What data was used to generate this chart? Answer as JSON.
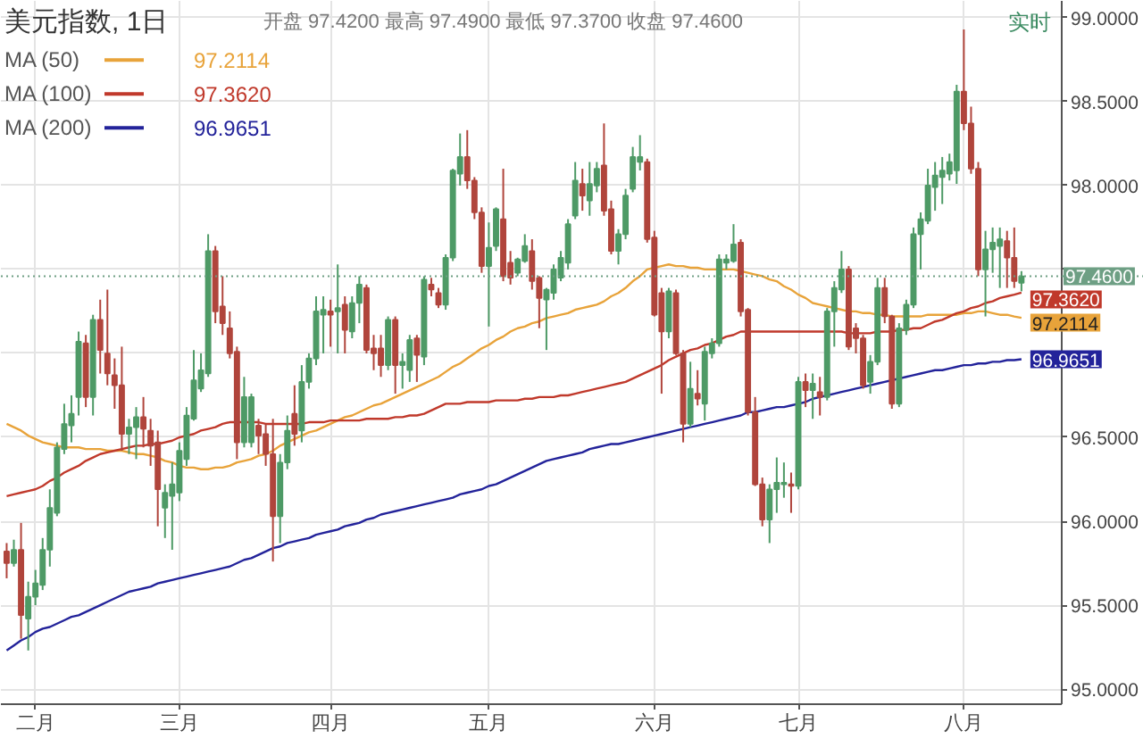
{
  "chart_data": {
    "type": "candlestick",
    "title": "美元指数, 1日",
    "subtitle": "开盘 97.4200 最高 97.4900 最低 97.3700 收盘 97.4600",
    "annotations": [
      "实时"
    ],
    "categories": [
      null,
      null,
      null,
      null,
      "二月",
      null,
      null,
      null,
      null,
      null,
      null,
      null,
      null,
      null,
      null,
      null,
      null,
      null,
      null,
      null,
      null,
      null,
      null,
      null,
      "三月",
      null,
      null,
      null,
      null,
      null,
      null,
      null,
      null,
      null,
      null,
      null,
      null,
      null,
      null,
      null,
      null,
      null,
      null,
      null,
      null,
      "四月",
      null,
      null,
      null,
      null,
      null,
      null,
      null,
      null,
      null,
      null,
      null,
      null,
      null,
      null,
      null,
      null,
      null,
      null,
      null,
      null,
      null,
      "五月",
      null,
      null,
      null,
      null,
      null,
      null,
      null,
      null,
      null,
      null,
      null,
      null,
      null,
      null,
      null,
      null,
      null,
      null,
      null,
      null,
      null,
      null,
      "六月",
      null,
      null,
      null,
      null,
      null,
      null,
      null,
      null,
      null,
      null,
      null,
      null,
      null,
      null,
      null,
      null,
      null,
      null,
      null,
      "七月",
      null,
      null,
      null,
      null,
      null,
      null,
      null,
      null,
      null,
      null,
      null,
      null,
      null,
      null,
      null,
      null,
      null,
      null,
      null,
      null,
      null,
      null,
      "八月",
      null,
      null,
      null,
      null,
      null,
      null,
      null,
      null
    ],
    "ohlc": [
      [
        95.82,
        95.87,
        95.66,
        95.75
      ],
      [
        95.75,
        95.89,
        95.73,
        95.83
      ],
      [
        95.83,
        95.99,
        95.3,
        95.44
      ],
      [
        95.42,
        95.64,
        95.23,
        95.55
      ],
      [
        95.55,
        95.71,
        95.5,
        95.63
      ],
      [
        95.62,
        95.9,
        95.59,
        95.83
      ],
      [
        95.83,
        96.19,
        95.73,
        96.08
      ],
      [
        96.05,
        96.47,
        96.03,
        96.44
      ],
      [
        96.43,
        96.7,
        96.4,
        96.58
      ],
      [
        96.57,
        96.75,
        96.47,
        96.64
      ],
      [
        96.74,
        97.13,
        96.63,
        97.07
      ],
      [
        97.06,
        97.11,
        96.68,
        96.74
      ],
      [
        96.74,
        97.23,
        96.63,
        97.2
      ],
      [
        97.2,
        97.32,
        96.88,
        97.02
      ],
      [
        97.0,
        97.38,
        96.81,
        96.88
      ],
      [
        96.87,
        96.97,
        96.67,
        96.81
      ],
      [
        96.81,
        97.04,
        96.42,
        96.52
      ],
      [
        96.52,
        96.61,
        96.4,
        96.56
      ],
      [
        96.56,
        96.68,
        96.37,
        96.62
      ],
      [
        96.62,
        96.74,
        96.44,
        96.55
      ],
      [
        96.54,
        96.61,
        96.33,
        96.45
      ],
      [
        96.47,
        96.54,
        95.97,
        96.19
      ],
      [
        96.08,
        96.22,
        95.9,
        96.17
      ],
      [
        96.15,
        96.35,
        95.83,
        96.22
      ],
      [
        96.17,
        96.47,
        96.12,
        96.42
      ],
      [
        96.37,
        96.68,
        96.33,
        96.63
      ],
      [
        96.61,
        97.02,
        96.6,
        96.84
      ],
      [
        96.79,
        97.0,
        96.77,
        96.9
      ],
      [
        96.88,
        97.71,
        96.86,
        97.61
      ],
      [
        97.61,
        97.64,
        97.18,
        97.25
      ],
      [
        97.28,
        97.46,
        97.11,
        97.18
      ],
      [
        97.15,
        97.25,
        96.97,
        97.0
      ],
      [
        97.01,
        97.04,
        96.37,
        96.47
      ],
      [
        96.47,
        96.86,
        96.44,
        96.74
      ],
      [
        96.47,
        96.76,
        96.44,
        96.74
      ],
      [
        96.57,
        96.61,
        96.4,
        96.51
      ],
      [
        96.52,
        96.58,
        96.33,
        96.4
      ],
      [
        96.4,
        96.61,
        95.76,
        96.03
      ],
      [
        96.03,
        96.4,
        95.87,
        96.35
      ],
      [
        96.35,
        96.63,
        96.31,
        96.54
      ],
      [
        96.64,
        96.81,
        96.45,
        96.52
      ],
      [
        96.54,
        96.93,
        96.47,
        96.83
      ],
      [
        96.83,
        97.0,
        96.79,
        96.97
      ],
      [
        96.97,
        97.34,
        96.93,
        97.25
      ],
      [
        97.23,
        97.34,
        97.0,
        97.26
      ],
      [
        97.25,
        97.32,
        97.04,
        97.23
      ],
      [
        97.25,
        97.53,
        97.0,
        97.27
      ],
      [
        97.29,
        97.34,
        97.0,
        97.14
      ],
      [
        97.13,
        97.34,
        97.09,
        97.3
      ],
      [
        97.3,
        97.46,
        97.18,
        97.41
      ],
      [
        97.39,
        97.41,
        97.0,
        97.02
      ],
      [
        97.03,
        97.11,
        96.9,
        97.0
      ],
      [
        97.03,
        97.11,
        96.86,
        96.93
      ],
      [
        96.93,
        97.22,
        96.9,
        97.2
      ],
      [
        97.2,
        97.22,
        96.76,
        96.93
      ],
      [
        96.93,
        97.0,
        96.79,
        96.95
      ],
      [
        96.9,
        97.11,
        96.83,
        97.08
      ],
      [
        97.09,
        97.11,
        96.83,
        96.99
      ],
      [
        96.98,
        97.46,
        96.93,
        97.44
      ],
      [
        97.41,
        97.45,
        97.34,
        97.38
      ],
      [
        97.36,
        97.39,
        97.27,
        97.29
      ],
      [
        97.29,
        97.59,
        97.26,
        97.57
      ],
      [
        97.57,
        98.1,
        97.55,
        98.09
      ],
      [
        98.07,
        98.31,
        98.0,
        98.17
      ],
      [
        98.17,
        98.33,
        97.98,
        98.03
      ],
      [
        98.03,
        98.05,
        97.8,
        97.84
      ],
      [
        97.84,
        97.87,
        97.48,
        97.52
      ],
      [
        97.52,
        97.78,
        97.16,
        97.63
      ],
      [
        97.64,
        97.87,
        97.61,
        97.86
      ],
      [
        97.8,
        98.1,
        97.43,
        97.46
      ],
      [
        97.54,
        97.61,
        97.41,
        97.45
      ],
      [
        97.48,
        97.57,
        97.46,
        97.56
      ],
      [
        97.55,
        97.71,
        97.54,
        97.64
      ],
      [
        97.61,
        97.68,
        97.38,
        97.43
      ],
      [
        97.45,
        97.46,
        97.15,
        97.33
      ],
      [
        97.32,
        97.39,
        97.02,
        97.38
      ],
      [
        97.36,
        97.53,
        97.32,
        97.5
      ],
      [
        97.45,
        97.61,
        97.43,
        97.57
      ],
      [
        97.54,
        97.8,
        97.5,
        97.77
      ],
      [
        97.82,
        98.14,
        97.8,
        98.03
      ],
      [
        98.01,
        98.1,
        97.85,
        97.94
      ],
      [
        97.91,
        98.14,
        97.82,
        98.01
      ],
      [
        98.0,
        98.14,
        97.96,
        98.1
      ],
      [
        98.12,
        98.37,
        97.82,
        97.85
      ],
      [
        97.86,
        97.91,
        97.59,
        97.61
      ],
      [
        97.61,
        97.74,
        97.53,
        97.71
      ],
      [
        97.71,
        97.98,
        97.68,
        97.94
      ],
      [
        97.98,
        98.23,
        97.96,
        98.17
      ],
      [
        98.14,
        98.3,
        98.09,
        98.17
      ],
      [
        98.14,
        98.16,
        97.66,
        97.68
      ],
      [
        97.69,
        97.73,
        97.22,
        97.23
      ],
      [
        97.36,
        97.39,
        96.76,
        97.13
      ],
      [
        97.13,
        97.39,
        97.09,
        97.37
      ],
      [
        97.36,
        97.38,
        96.99,
        97.0
      ],
      [
        97.0,
        97.02,
        96.47,
        96.58
      ],
      [
        96.58,
        96.95,
        96.56,
        96.79
      ],
      [
        96.76,
        96.9,
        96.69,
        96.73
      ],
      [
        96.7,
        97.04,
        96.6,
        97.01
      ],
      [
        97.0,
        97.09,
        96.97,
        97.06
      ],
      [
        97.06,
        97.59,
        97.04,
        97.56
      ],
      [
        97.54,
        97.59,
        97.5,
        97.56
      ],
      [
        97.55,
        97.77,
        97.54,
        97.65
      ],
      [
        97.66,
        97.68,
        97.22,
        97.25
      ],
      [
        97.26,
        97.27,
        96.63,
        96.65
      ],
      [
        96.65,
        96.74,
        96.21,
        96.22
      ],
      [
        96.22,
        96.26,
        95.97,
        96.01
      ],
      [
        96.01,
        96.22,
        95.87,
        96.19
      ],
      [
        96.19,
        96.38,
        96.05,
        96.23
      ],
      [
        96.22,
        96.35,
        96.14,
        96.23
      ],
      [
        96.22,
        96.29,
        96.05,
        96.21
      ],
      [
        96.21,
        96.86,
        96.19,
        96.83
      ],
      [
        96.83,
        96.88,
        96.68,
        96.78
      ],
      [
        96.78,
        96.88,
        96.61,
        96.82
      ],
      [
        96.77,
        96.86,
        96.63,
        96.74
      ],
      [
        96.74,
        97.27,
        96.72,
        97.25
      ],
      [
        97.25,
        97.43,
        97.04,
        97.39
      ],
      [
        97.38,
        97.61,
        97.36,
        97.5
      ],
      [
        97.5,
        97.52,
        97.02,
        97.04
      ],
      [
        97.15,
        97.18,
        97.0,
        97.09
      ],
      [
        97.09,
        97.11,
        96.79,
        96.81
      ],
      [
        96.83,
        96.99,
        96.76,
        96.95
      ],
      [
        96.95,
        97.45,
        96.93,
        97.39
      ],
      [
        97.39,
        97.45,
        97.18,
        97.22
      ],
      [
        97.22,
        97.23,
        96.67,
        96.7
      ],
      [
        96.7,
        97.18,
        96.68,
        97.15
      ],
      [
        97.14,
        97.32,
        97.11,
        97.29
      ],
      [
        97.29,
        97.75,
        97.27,
        97.71
      ],
      [
        97.71,
        97.84,
        97.5,
        97.8
      ],
      [
        97.79,
        98.1,
        97.77,
        98.0
      ],
      [
        97.99,
        98.14,
        97.85,
        98.06
      ],
      [
        98.05,
        98.17,
        97.89,
        98.09
      ],
      [
        98.07,
        98.19,
        98.03,
        98.14
      ],
      [
        98.09,
        98.6,
        98.01,
        98.56
      ],
      [
        98.56,
        98.93,
        98.33,
        98.37
      ],
      [
        98.37,
        98.47,
        98.07,
        98.1
      ],
      [
        98.1,
        98.14,
        97.46,
        97.5
      ],
      [
        97.5,
        97.73,
        97.22,
        97.62
      ],
      [
        97.62,
        97.75,
        97.48,
        97.66
      ],
      [
        97.64,
        97.75,
        97.39,
        97.68
      ],
      [
        97.67,
        97.73,
        97.39,
        97.57
      ],
      [
        97.57,
        97.75,
        97.39,
        97.43
      ],
      [
        97.42,
        97.49,
        97.37,
        97.46
      ]
    ],
    "colors": [
      "#b0453c",
      "#4e9a66",
      "#b0453c",
      "#4e9a66",
      "#4e9a66",
      "#4e9a66",
      "#4e9a66",
      "#4e9a66",
      "#4e9a66",
      "#4e9a66",
      "#4e9a66",
      "#b0453c",
      "#4e9a66",
      "#b0453c",
      "#b0453c",
      "#b0453c",
      "#b0453c",
      "#4e9a66",
      "#4e9a66",
      "#b0453c",
      "#b0453c",
      "#b0453c",
      "#4e9a66",
      "#4e9a66",
      "#4e9a66",
      "#4e9a66",
      "#4e9a66",
      "#4e9a66",
      "#4e9a66",
      "#b0453c",
      "#b0453c",
      "#b0453c",
      "#b0453c",
      "#4e9a66",
      "#4e9a66",
      "#b0453c",
      "#b0453c",
      "#b0453c",
      "#4e9a66",
      "#4e9a66",
      "#b0453c",
      "#4e9a66",
      "#4e9a66",
      "#4e9a66",
      "#4e9a66",
      "#b0453c",
      "#4e9a66",
      "#b0453c",
      "#4e9a66",
      "#4e9a66",
      "#b0453c",
      "#b0453c",
      "#b0453c",
      "#4e9a66",
      "#b0453c",
      "#4e9a66",
      "#4e9a66",
      "#b0453c",
      "#4e9a66",
      "#b0453c",
      "#b0453c",
      "#4e9a66",
      "#4e9a66",
      "#4e9a66",
      "#b0453c",
      "#b0453c",
      "#b0453c",
      "#4e9a66",
      "#4e9a66",
      "#b0453c",
      "#b0453c",
      "#4e9a66",
      "#4e9a66",
      "#b0453c",
      "#b0453c",
      "#4e9a66",
      "#4e9a66",
      "#4e9a66",
      "#4e9a66",
      "#4e9a66",
      "#b0453c",
      "#4e9a66",
      "#4e9a66",
      "#b0453c",
      "#b0453c",
      "#4e9a66",
      "#4e9a66",
      "#4e9a66",
      "#4e9a66",
      "#b0453c",
      "#b0453c",
      "#b0453c",
      "#4e9a66",
      "#b0453c",
      "#b0453c",
      "#4e9a66",
      "#b0453c",
      "#4e9a66",
      "#4e9a66",
      "#4e9a66",
      "#4e9a66",
      "#4e9a66",
      "#b0453c",
      "#b0453c",
      "#b0453c",
      "#b0453c",
      "#4e9a66",
      "#4e9a66",
      "#4e9a66",
      "#b0453c",
      "#4e9a66",
      "#b0453c",
      "#4e9a66",
      "#b0453c",
      "#4e9a66",
      "#4e9a66",
      "#4e9a66",
      "#b0453c",
      "#b0453c",
      "#b0453c",
      "#4e9a66",
      "#4e9a66",
      "#b0453c",
      "#b0453c",
      "#4e9a66",
      "#4e9a66",
      "#4e9a66",
      "#4e9a66",
      "#4e9a66",
      "#4e9a66",
      "#4e9a66",
      "#4e9a66",
      "#4e9a66",
      "#b0453c",
      "#b0453c",
      "#b0453c",
      "#4e9a66",
      "#4e9a66",
      "#4e9a66",
      "#b0453c",
      "#b0453c",
      "#4e9a66"
    ],
    "series": [
      {
        "name": "MA (50)",
        "type": "line",
        "color": "#e8a33a",
        "values": [
          96.58,
          96.56,
          96.54,
          96.51,
          96.49,
          96.47,
          96.46,
          96.45,
          96.44,
          96.44,
          96.44,
          96.43,
          96.43,
          96.43,
          96.42,
          96.42,
          96.42,
          96.41,
          96.4,
          96.4,
          96.39,
          96.38,
          96.36,
          96.35,
          96.33,
          96.32,
          96.32,
          96.31,
          96.31,
          96.32,
          96.32,
          96.33,
          96.35,
          96.36,
          96.37,
          96.39,
          96.4,
          96.42,
          96.45,
          96.47,
          96.49,
          96.51,
          96.53,
          96.54,
          96.56,
          96.58,
          96.6,
          96.62,
          96.63,
          96.65,
          96.67,
          96.69,
          96.7,
          96.72,
          96.74,
          96.76,
          96.78,
          96.8,
          96.82,
          96.84,
          96.86,
          96.89,
          96.92,
          96.94,
          96.97,
          97.0,
          97.03,
          97.05,
          97.08,
          97.1,
          97.13,
          97.15,
          97.16,
          97.18,
          97.19,
          97.21,
          97.22,
          97.23,
          97.24,
          97.26,
          97.27,
          97.28,
          97.29,
          97.31,
          97.34,
          97.36,
          97.39,
          97.43,
          97.46,
          97.5,
          97.51,
          97.52,
          97.53,
          97.52,
          97.52,
          97.51,
          97.51,
          97.5,
          97.5,
          97.5,
          97.5,
          97.5,
          97.49,
          97.48,
          97.47,
          97.46,
          97.44,
          97.43,
          97.4,
          97.38,
          97.35,
          97.33,
          97.3,
          97.29,
          97.28,
          97.27,
          97.26,
          97.25,
          97.25,
          97.24,
          97.24,
          97.23,
          97.23,
          97.22,
          97.22,
          97.22,
          97.22,
          97.22,
          97.23,
          97.23,
          97.23,
          97.23,
          97.23,
          97.24,
          97.24,
          97.25,
          97.25,
          97.24,
          97.23,
          97.23,
          97.22,
          97.2114
        ],
        "value_labels": [
          null,
          null,
          null,
          null,
          null,
          null,
          null,
          null,
          null,
          null,
          null,
          null,
          null,
          null,
          null,
          null,
          null,
          null,
          null,
          null,
          null,
          null,
          null,
          null,
          null,
          null,
          null,
          null,
          null,
          null,
          null,
          null,
          null,
          null,
          null,
          null,
          null,
          null,
          null,
          null,
          null,
          null,
          null,
          null,
          null,
          null,
          null,
          null,
          null,
          null,
          null,
          null,
          null,
          null,
          null,
          null,
          null,
          null,
          null,
          null,
          null,
          null,
          null,
          null,
          null,
          null,
          null,
          null,
          null,
          null,
          null,
          null,
          null,
          null,
          null,
          null,
          null,
          null,
          null,
          null,
          null,
          null,
          null,
          null,
          null,
          null,
          null,
          null,
          null,
          null,
          null,
          null,
          null,
          null,
          null,
          null,
          null,
          null,
          null,
          null,
          null,
          null,
          null,
          null,
          null,
          null,
          null,
          null,
          null,
          null,
          null,
          null,
          null,
          null,
          null,
          null,
          null,
          null,
          null,
          null,
          null,
          null,
          null,
          null,
          null,
          null,
          null,
          null,
          null,
          null,
          null,
          null,
          null,
          null,
          null,
          null,
          null,
          null,
          null,
          null,
          null,
          "97.2114"
        ]
      },
      {
        "name": "MA (100)",
        "type": "line",
        "color": "#c0392b",
        "values": [
          96.15,
          96.16,
          96.17,
          96.18,
          96.19,
          96.21,
          96.24,
          96.26,
          96.29,
          96.31,
          96.33,
          96.36,
          96.38,
          96.4,
          96.41,
          96.42,
          96.43,
          96.44,
          96.45,
          96.45,
          96.46,
          96.46,
          96.47,
          96.48,
          96.5,
          96.51,
          96.52,
          96.54,
          96.55,
          96.56,
          96.58,
          96.59,
          96.59,
          96.59,
          96.59,
          96.59,
          96.58,
          96.58,
          96.58,
          96.58,
          96.58,
          96.58,
          96.59,
          96.59,
          96.59,
          96.6,
          96.6,
          96.6,
          96.6,
          96.6,
          96.61,
          96.61,
          96.61,
          96.61,
          96.62,
          96.62,
          96.63,
          96.63,
          96.64,
          96.66,
          96.68,
          96.7,
          96.7,
          96.7,
          96.71,
          96.71,
          96.71,
          96.71,
          96.72,
          96.72,
          96.72,
          96.72,
          96.73,
          96.73,
          96.74,
          96.74,
          96.74,
          96.75,
          96.75,
          96.76,
          96.77,
          96.78,
          96.79,
          96.8,
          96.81,
          96.82,
          96.83,
          96.85,
          96.87,
          96.89,
          96.91,
          96.93,
          96.96,
          96.98,
          97.0,
          97.02,
          97.03,
          97.05,
          97.06,
          97.08,
          97.1,
          97.11,
          97.13,
          97.13,
          97.13,
          97.13,
          97.13,
          97.13,
          97.13,
          97.13,
          97.13,
          97.13,
          97.13,
          97.13,
          97.13,
          97.13,
          97.13,
          97.12,
          97.12,
          97.12,
          97.12,
          97.13,
          97.13,
          97.13,
          97.14,
          97.14,
          97.15,
          97.15,
          97.17,
          97.19,
          97.2,
          97.22,
          97.24,
          97.25,
          97.27,
          97.28,
          97.3,
          97.31,
          97.33,
          97.34,
          97.35,
          97.362
        ],
        "value_labels": [
          null,
          null,
          null,
          null,
          null,
          null,
          null,
          null,
          null,
          null,
          null,
          null,
          null,
          null,
          null,
          null,
          null,
          null,
          null,
          null,
          null,
          null,
          null,
          null,
          null,
          null,
          null,
          null,
          null,
          null,
          null,
          null,
          null,
          null,
          null,
          null,
          null,
          null,
          null,
          null,
          null,
          null,
          null,
          null,
          null,
          null,
          null,
          null,
          null,
          null,
          null,
          null,
          null,
          null,
          null,
          null,
          null,
          null,
          null,
          null,
          null,
          null,
          null,
          null,
          null,
          null,
          null,
          null,
          null,
          null,
          null,
          null,
          null,
          null,
          null,
          null,
          null,
          null,
          null,
          null,
          null,
          null,
          null,
          null,
          null,
          null,
          null,
          null,
          null,
          null,
          null,
          null,
          null,
          null,
          null,
          null,
          null,
          null,
          null,
          null,
          null,
          null,
          null,
          null,
          null,
          null,
          null,
          null,
          null,
          null,
          null,
          null,
          null,
          null,
          null,
          null,
          null,
          null,
          null,
          null,
          null,
          null,
          null,
          null,
          null,
          null,
          null,
          null,
          null,
          null,
          null,
          null,
          null,
          null,
          null,
          null,
          null,
          null,
          null,
          null,
          null,
          "97.3620"
        ]
      },
      {
        "name": "MA (200)",
        "type": "line",
        "color": "#23239a",
        "values": [
          95.23,
          95.26,
          95.29,
          95.31,
          95.34,
          95.36,
          95.37,
          95.39,
          95.41,
          95.43,
          95.44,
          95.46,
          95.48,
          95.5,
          95.52,
          95.54,
          95.56,
          95.58,
          95.59,
          95.6,
          95.61,
          95.63,
          95.64,
          95.65,
          95.66,
          95.67,
          95.68,
          95.69,
          95.7,
          95.71,
          95.72,
          95.73,
          95.75,
          95.77,
          95.78,
          95.8,
          95.82,
          95.84,
          95.85,
          95.87,
          95.88,
          95.89,
          95.9,
          95.92,
          95.93,
          95.94,
          95.95,
          95.97,
          95.98,
          95.99,
          96.01,
          96.02,
          96.04,
          96.05,
          96.06,
          96.07,
          96.08,
          96.09,
          96.1,
          96.11,
          96.12,
          96.13,
          96.14,
          96.16,
          96.17,
          96.18,
          96.19,
          96.21,
          96.22,
          96.24,
          96.26,
          96.28,
          96.3,
          96.32,
          96.34,
          96.36,
          96.37,
          96.38,
          96.39,
          96.4,
          96.41,
          96.43,
          96.44,
          96.45,
          96.46,
          96.46,
          96.47,
          96.48,
          96.49,
          96.5,
          96.51,
          96.52,
          96.53,
          96.54,
          96.55,
          96.56,
          96.57,
          96.58,
          96.59,
          96.6,
          96.61,
          96.62,
          96.63,
          96.65,
          96.65,
          96.66,
          96.67,
          96.68,
          96.68,
          96.69,
          96.7,
          96.71,
          96.73,
          96.74,
          96.75,
          96.76,
          96.77,
          96.78,
          96.79,
          96.8,
          96.81,
          96.82,
          96.83,
          96.84,
          96.85,
          96.86,
          96.87,
          96.88,
          96.89,
          96.9,
          96.9,
          96.91,
          96.92,
          96.93,
          96.93,
          96.94,
          96.94,
          96.95,
          96.95,
          96.96,
          96.96,
          96.9651
        ],
        "value_labels": [
          null,
          null,
          null,
          null,
          null,
          null,
          null,
          null,
          null,
          null,
          null,
          null,
          null,
          null,
          null,
          null,
          null,
          null,
          null,
          null,
          null,
          null,
          null,
          null,
          null,
          null,
          null,
          null,
          null,
          null,
          null,
          null,
          null,
          null,
          null,
          null,
          null,
          null,
          null,
          null,
          null,
          null,
          null,
          null,
          null,
          null,
          null,
          null,
          null,
          null,
          null,
          null,
          null,
          null,
          null,
          null,
          null,
          null,
          null,
          null,
          null,
          null,
          null,
          null,
          null,
          null,
          null,
          null,
          null,
          null,
          null,
          null,
          null,
          null,
          null,
          null,
          null,
          null,
          null,
          null,
          null,
          null,
          null,
          null,
          null,
          null,
          null,
          null,
          null,
          null,
          null,
          null,
          null,
          null,
          null,
          null,
          null,
          null,
          null,
          null,
          null,
          null,
          null,
          null,
          null,
          null,
          null,
          null,
          null,
          null,
          null,
          null,
          null,
          null,
          null,
          null,
          null,
          null,
          null,
          null,
          null,
          null,
          null,
          null,
          null,
          null,
          null,
          null,
          null,
          null,
          null,
          null,
          null,
          null,
          null,
          null,
          null,
          null,
          null,
          null,
          null,
          "96.9651"
        ]
      }
    ],
    "ylim": [
      94.91,
      99.1
    ],
    "yticks": [
      {
        "value": 95,
        "label": "95.0000"
      },
      {
        "value": 95.5,
        "label": "95.5000"
      },
      {
        "value": 96,
        "label": "96.0000"
      },
      {
        "value": 96.5,
        "label": "96.5000"
      },
      {
        "value": 97,
        "label": null
      },
      {
        "value": 97.5,
        "label": null
      },
      {
        "value": 98,
        "label": "98.0000"
      },
      {
        "value": 98.5,
        "label": "98.5000"
      },
      {
        "value": 99,
        "label": "99.0000"
      }
    ],
    "grid": true,
    "legend": "top left",
    "ref_lines": [
      {
        "axis": "y",
        "value": 97.46,
        "label": "97.4600",
        "color": "#6e9f84",
        "line_style": "dotted"
      }
    ]
  }
}
